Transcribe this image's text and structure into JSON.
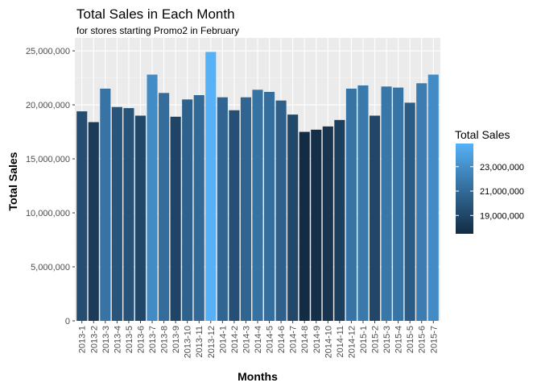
{
  "chart_data": {
    "type": "bar",
    "title": "Total Sales in Each Month",
    "subtitle": "for stores starting Promo2 in February",
    "xlabel": "Months",
    "ylabel": "Total Sales",
    "ylim": [
      0,
      26200000
    ],
    "y_ticks": [
      0,
      5000000,
      10000000,
      15000000,
      20000000,
      25000000
    ],
    "y_tick_labels": [
      "0",
      "5,000,000",
      "10,000,000",
      "15,000,000",
      "20,000,000",
      "25,000,000"
    ],
    "grid": true,
    "categories": [
      "2013-1",
      "2013-2",
      "2013-3",
      "2013-4",
      "2013-5",
      "2013-6",
      "2013-7",
      "2013-8",
      "2013-9",
      "2013-10",
      "2013-11",
      "2013-12",
      "2014-1",
      "2014-2",
      "2014-3",
      "2014-4",
      "2014-5",
      "2014-6",
      "2014-7",
      "2014-8",
      "2014-9",
      "2014-10",
      "2014-11",
      "2014-12",
      "2015-1",
      "2015-2",
      "2015-3",
      "2015-4",
      "2015-5",
      "2015-6",
      "2015-7"
    ],
    "values": [
      19400000,
      18400000,
      21500000,
      19800000,
      19700000,
      19000000,
      22800000,
      21100000,
      18900000,
      20500000,
      20900000,
      24900000,
      20700000,
      19500000,
      20700000,
      21400000,
      21200000,
      20400000,
      19100000,
      17500000,
      17700000,
      18000000,
      18600000,
      21500000,
      21800000,
      19000000,
      21700000,
      21600000,
      20200000,
      22000000,
      22800000
    ],
    "legend": {
      "title": "Total Sales",
      "placement": "right",
      "color_low": "#132B43",
      "color_high": "#56B1F7",
      "range": [
        17500000,
        24900000
      ],
      "tick_values": [
        19000000,
        21000000,
        23000000
      ],
      "tick_labels": [
        "19,000,000",
        "21,000,000",
        "23,000,000"
      ]
    }
  }
}
